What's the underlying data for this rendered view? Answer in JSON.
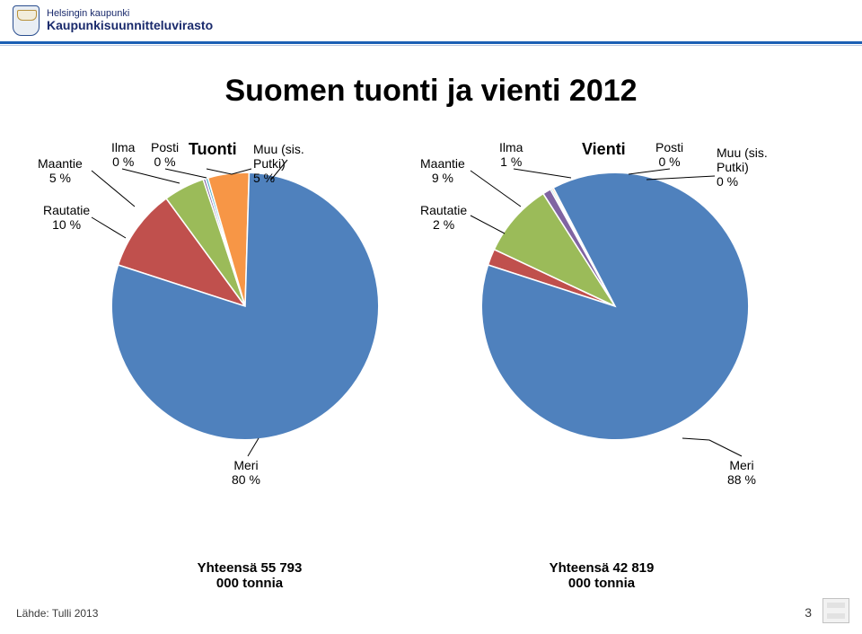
{
  "org": {
    "line1": "Helsingin kaupunki",
    "line2": "Kaupunkisuunnitteluvirasto"
  },
  "title": "Suomen tuonti ja vienti 2012",
  "colors": {
    "meri": "#4f81bd",
    "rautatie": "#c0504d",
    "maantie": "#9bbb59",
    "ilma": "#8064a2",
    "posti": "#4bacc6",
    "muu": "#f79646",
    "outline": "#ffffff"
  },
  "tuonti": {
    "group_title": "Tuonti",
    "total_label": "Yhteensä 55 793\n000 tonnia",
    "segments": [
      {
        "key": "meri",
        "label": "Meri",
        "display": "80 %",
        "value": 80
      },
      {
        "key": "rautatie",
        "label": "Rautatie",
        "display": "10 %",
        "value": 10
      },
      {
        "key": "maantie",
        "label": "Maantie",
        "display": "5 %",
        "value": 5
      },
      {
        "key": "ilma",
        "label": "Ilma",
        "display": "0 %",
        "value": 0.3
      },
      {
        "key": "posti",
        "label": "Posti",
        "display": "0 %",
        "value": 0.3
      },
      {
        "key": "muu",
        "label": "Muu (sis.\nPutki)",
        "display": "5 %",
        "value": 5
      }
    ]
  },
  "vienti": {
    "group_title": "Vienti",
    "total_label": "Yhteensä 42 819\n000 tonnia",
    "segments": [
      {
        "key": "meri",
        "label": "Meri",
        "display": "88 %",
        "value": 88
      },
      {
        "key": "rautatie",
        "label": "Rautatie",
        "display": "2 %",
        "value": 2
      },
      {
        "key": "maantie",
        "label": "Maantie",
        "display": "9 %",
        "value": 9
      },
      {
        "key": "ilma",
        "label": "Ilma",
        "display": "1 %",
        "value": 1
      },
      {
        "key": "posti",
        "label": "Posti",
        "display": "0 %",
        "value": 0.2
      },
      {
        "key": "muu",
        "label": "Muu (sis.\nPutki)",
        "display": "0 %",
        "value": 0.2
      }
    ]
  },
  "source": "Lähde: Tulli  2013",
  "page_number": "3"
}
